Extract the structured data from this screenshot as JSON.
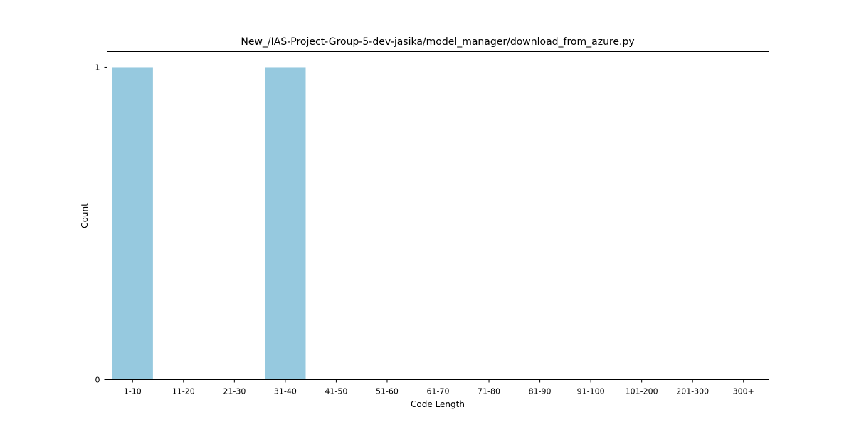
{
  "chart_data": {
    "type": "bar",
    "title": "New_/IAS-Project-Group-5-dev-jasika/model_manager/download_from_azure.py",
    "xlabel": "Code Length",
    "ylabel": "Count",
    "categories": [
      "1-10",
      "11-20",
      "21-30",
      "31-40",
      "41-50",
      "51-60",
      "61-70",
      "71-80",
      "81-90",
      "91-100",
      "101-200",
      "201-300",
      "300+"
    ],
    "values": [
      1,
      0,
      0,
      1,
      0,
      0,
      0,
      0,
      0,
      0,
      0,
      0,
      0
    ],
    "ylim": [
      0,
      1.05
    ],
    "yticks": [
      0,
      1
    ],
    "bar_color": "#96c9df",
    "grid": false,
    "legend": "none"
  }
}
